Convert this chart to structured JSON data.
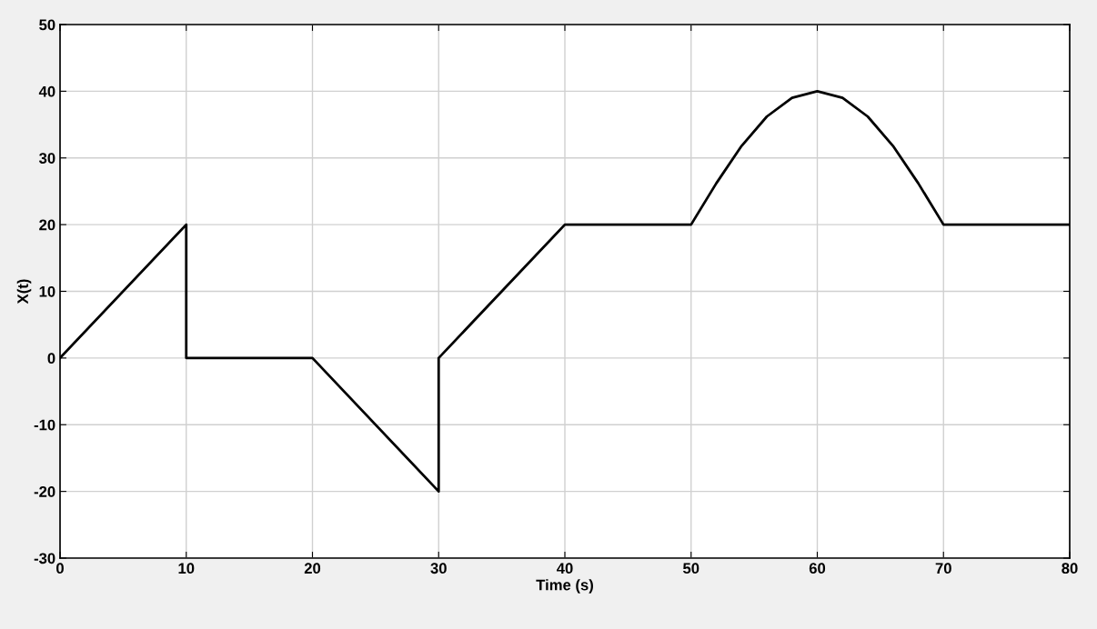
{
  "chart_data": {
    "type": "line",
    "xlabel": "Time (s)",
    "ylabel": "X(t)",
    "series": [
      {
        "color": "#000000",
        "x": [
          0,
          10,
          10,
          20,
          30,
          30,
          40,
          50,
          52,
          54,
          56,
          58,
          60,
          62,
          64,
          66,
          68,
          70,
          80
        ],
        "values": [
          0,
          20,
          0,
          0,
          -20,
          0,
          20,
          20,
          26.2,
          31.8,
          36.2,
          39,
          40,
          39,
          36.2,
          31.8,
          26.2,
          20,
          20
        ]
      }
    ],
    "xlim": [
      0,
      80
    ],
    "xticks": [
      0,
      10,
      20,
      30,
      40,
      50,
      60,
      70,
      80
    ],
    "ylim": [
      -30,
      50
    ],
    "yticks": [
      -30,
      -20,
      -10,
      0,
      10,
      20,
      30,
      40,
      50
    ],
    "grid": true,
    "line_style": "solid",
    "marker": "none"
  }
}
